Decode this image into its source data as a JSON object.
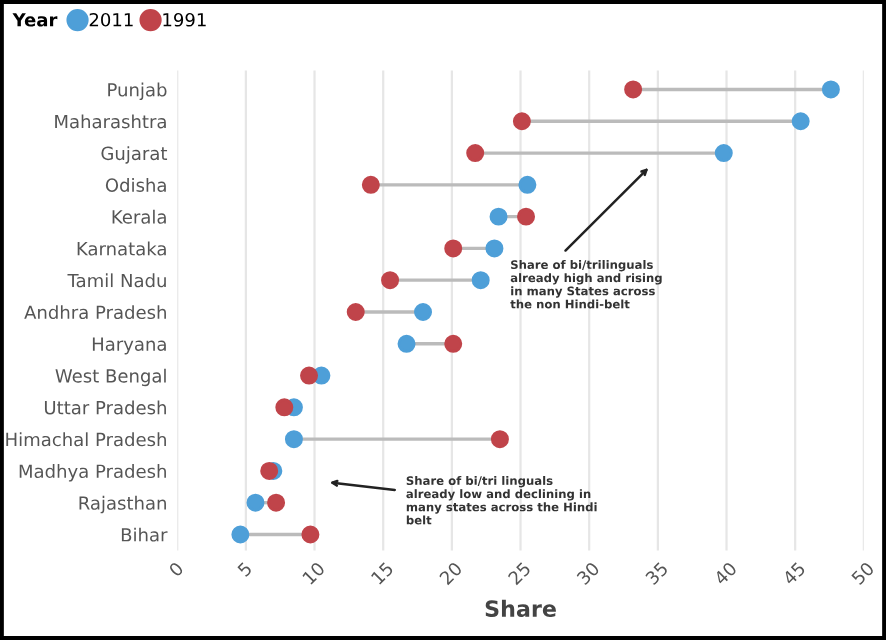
{
  "chart_data": {
    "type": "scatter",
    "orientation": "horizontal",
    "xlabel": "Share",
    "legend_title": "Year",
    "legend": "top left",
    "grid": "x",
    "marker": "circle",
    "categories": [
      "Punjab",
      "Maharashtra",
      "Gujarat",
      "Odisha",
      "Kerala",
      "Karnataka",
      "Tamil Nadu",
      "Andhra Pradesh",
      "Haryana",
      "West Bengal",
      "Uttar Pradesh",
      "Himachal Pradesh",
      "Madhya Pradesh",
      "Rajasthan",
      "Bihar"
    ],
    "series": [
      {
        "name": "2011",
        "color": "#4e9fd8",
        "values": [
          47.6,
          45.4,
          39.8,
          25.5,
          23.4,
          23.1,
          22.1,
          17.9,
          16.7,
          10.5,
          8.5,
          8.5,
          7.0,
          5.7,
          4.6
        ]
      },
      {
        "name": "1991",
        "color": "#c0444a",
        "values": [
          33.2,
          25.1,
          21.7,
          14.1,
          25.4,
          20.1,
          15.5,
          13.0,
          20.1,
          9.6,
          7.8,
          23.5,
          6.7,
          7.2,
          9.7
        ]
      }
    ],
    "xlim": [
      0,
      50
    ],
    "xticks": [
      0,
      5,
      10,
      15,
      20,
      25,
      30,
      35,
      40,
      45,
      50
    ],
    "annotations": [
      "Share of bi/trilinguals\nalready high and rising\nin many States across\nthe non Hindi-belt",
      "Share of bi/tri linguals\nalready low and declining in\nmany states across the Hindi\nbelt"
    ]
  }
}
